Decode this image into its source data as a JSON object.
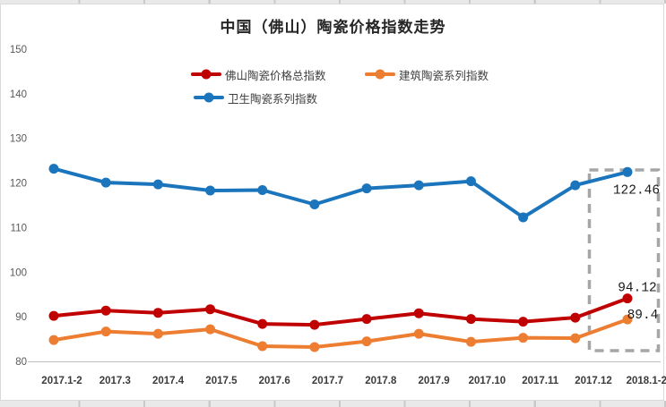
{
  "title": "中国（佛山）陶瓷价格指数走势",
  "chart_data": {
    "type": "line",
    "title": "中国（佛山）陶瓷价格指数走势",
    "categories": [
      "2017.1-2",
      "2017.3",
      "2017.4",
      "2017.5",
      "2017.6",
      "2017.7",
      "2017.8",
      "2017.9",
      "2017.10",
      "2017.11",
      "2017.12",
      "2018.1-2"
    ],
    "series": [
      {
        "name": "佛山陶瓷价格总指数",
        "color": "#c00000",
        "values": [
          90.2,
          91.4,
          90.9,
          91.7,
          88.4,
          88.2,
          89.5,
          90.8,
          89.5,
          88.9,
          89.8,
          94.12
        ]
      },
      {
        "name": "建筑陶瓷系列指数",
        "color": "#ed7d31",
        "values": [
          84.8,
          86.7,
          86.2,
          87.2,
          83.4,
          83.2,
          84.5,
          86.2,
          84.4,
          85.3,
          85.2,
          89.4
        ]
      },
      {
        "name": "卫生陶瓷系列指数",
        "color": "#1b75bc",
        "values": [
          123.2,
          120.1,
          119.7,
          118.3,
          118.4,
          115.2,
          118.8,
          119.5,
          120.4,
          112.3,
          119.5,
          122.46
        ]
      }
    ],
    "xlabel": "",
    "ylabel": "",
    "ylim": [
      80,
      150
    ],
    "y_ticks": [
      "80",
      "90",
      "100",
      "110",
      "120",
      "130",
      "140",
      "150"
    ],
    "grid": false,
    "legend_position": "top",
    "annotations": {
      "highlight_last_category": true,
      "highlight_box_color": "#a6a6a6",
      "data_labels": [
        {
          "series_index": 2,
          "category": "2018.1-2",
          "text": "122.46"
        },
        {
          "series_index": 0,
          "category": "2018.1-2",
          "text": "94.12"
        },
        {
          "series_index": 1,
          "category": "2018.1-2",
          "text": "89.4"
        }
      ]
    }
  },
  "colors": {
    "axis_line": "#bfbfbf",
    "y_tick_label": "#595959",
    "x_tick_label": "#3b3b3b",
    "title": "#262626",
    "data_label": "#1a1a1a",
    "frame_border": "#d9d9d9",
    "cell_strip_bg": "#e9e9e9"
  }
}
